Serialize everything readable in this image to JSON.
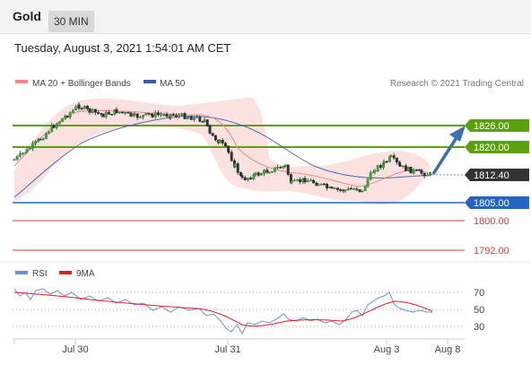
{
  "header": {
    "symbol": "Gold",
    "timeframe": "30 MIN"
  },
  "timestamp": "Tuesday, August 3, 2021 1:54:01 AM CET",
  "legend": {
    "ma20": "MA 20 + Bollinger Bands",
    "ma50": "MA 50",
    "copyright": "Research © 2021 Trading Central",
    "rsi": "RSI",
    "ma9": "9MA"
  },
  "colors": {
    "resistance": "#5aa10c",
    "support": "#2664c4",
    "target_red": "#e03a3a",
    "arrow": "#3a6fb0",
    "price": "#333333",
    "ma20": "#f08a8a",
    "bollinger": "#fbdada",
    "ma50": "#4a6fb0"
  },
  "levels": [
    {
      "label": "1826.00",
      "value": 1826.0,
      "kind": "resistance"
    },
    {
      "label": "1820.00",
      "value": 1820.0,
      "kind": "resistance"
    },
    {
      "label": "1812.40",
      "value": 1812.4,
      "kind": "price"
    },
    {
      "label": "1805.00",
      "value": 1805.0,
      "kind": "support"
    },
    {
      "label": "1800.00",
      "value": 1800.0,
      "kind": "target"
    },
    {
      "label": "1792.00",
      "value": 1792.0,
      "kind": "target"
    }
  ],
  "rsi_ticks": [
    "70",
    "50",
    "30"
  ],
  "x_labels": [
    "Jul 30",
    "Jul 31",
    "Aug 3",
    "Aug 8"
  ]
}
